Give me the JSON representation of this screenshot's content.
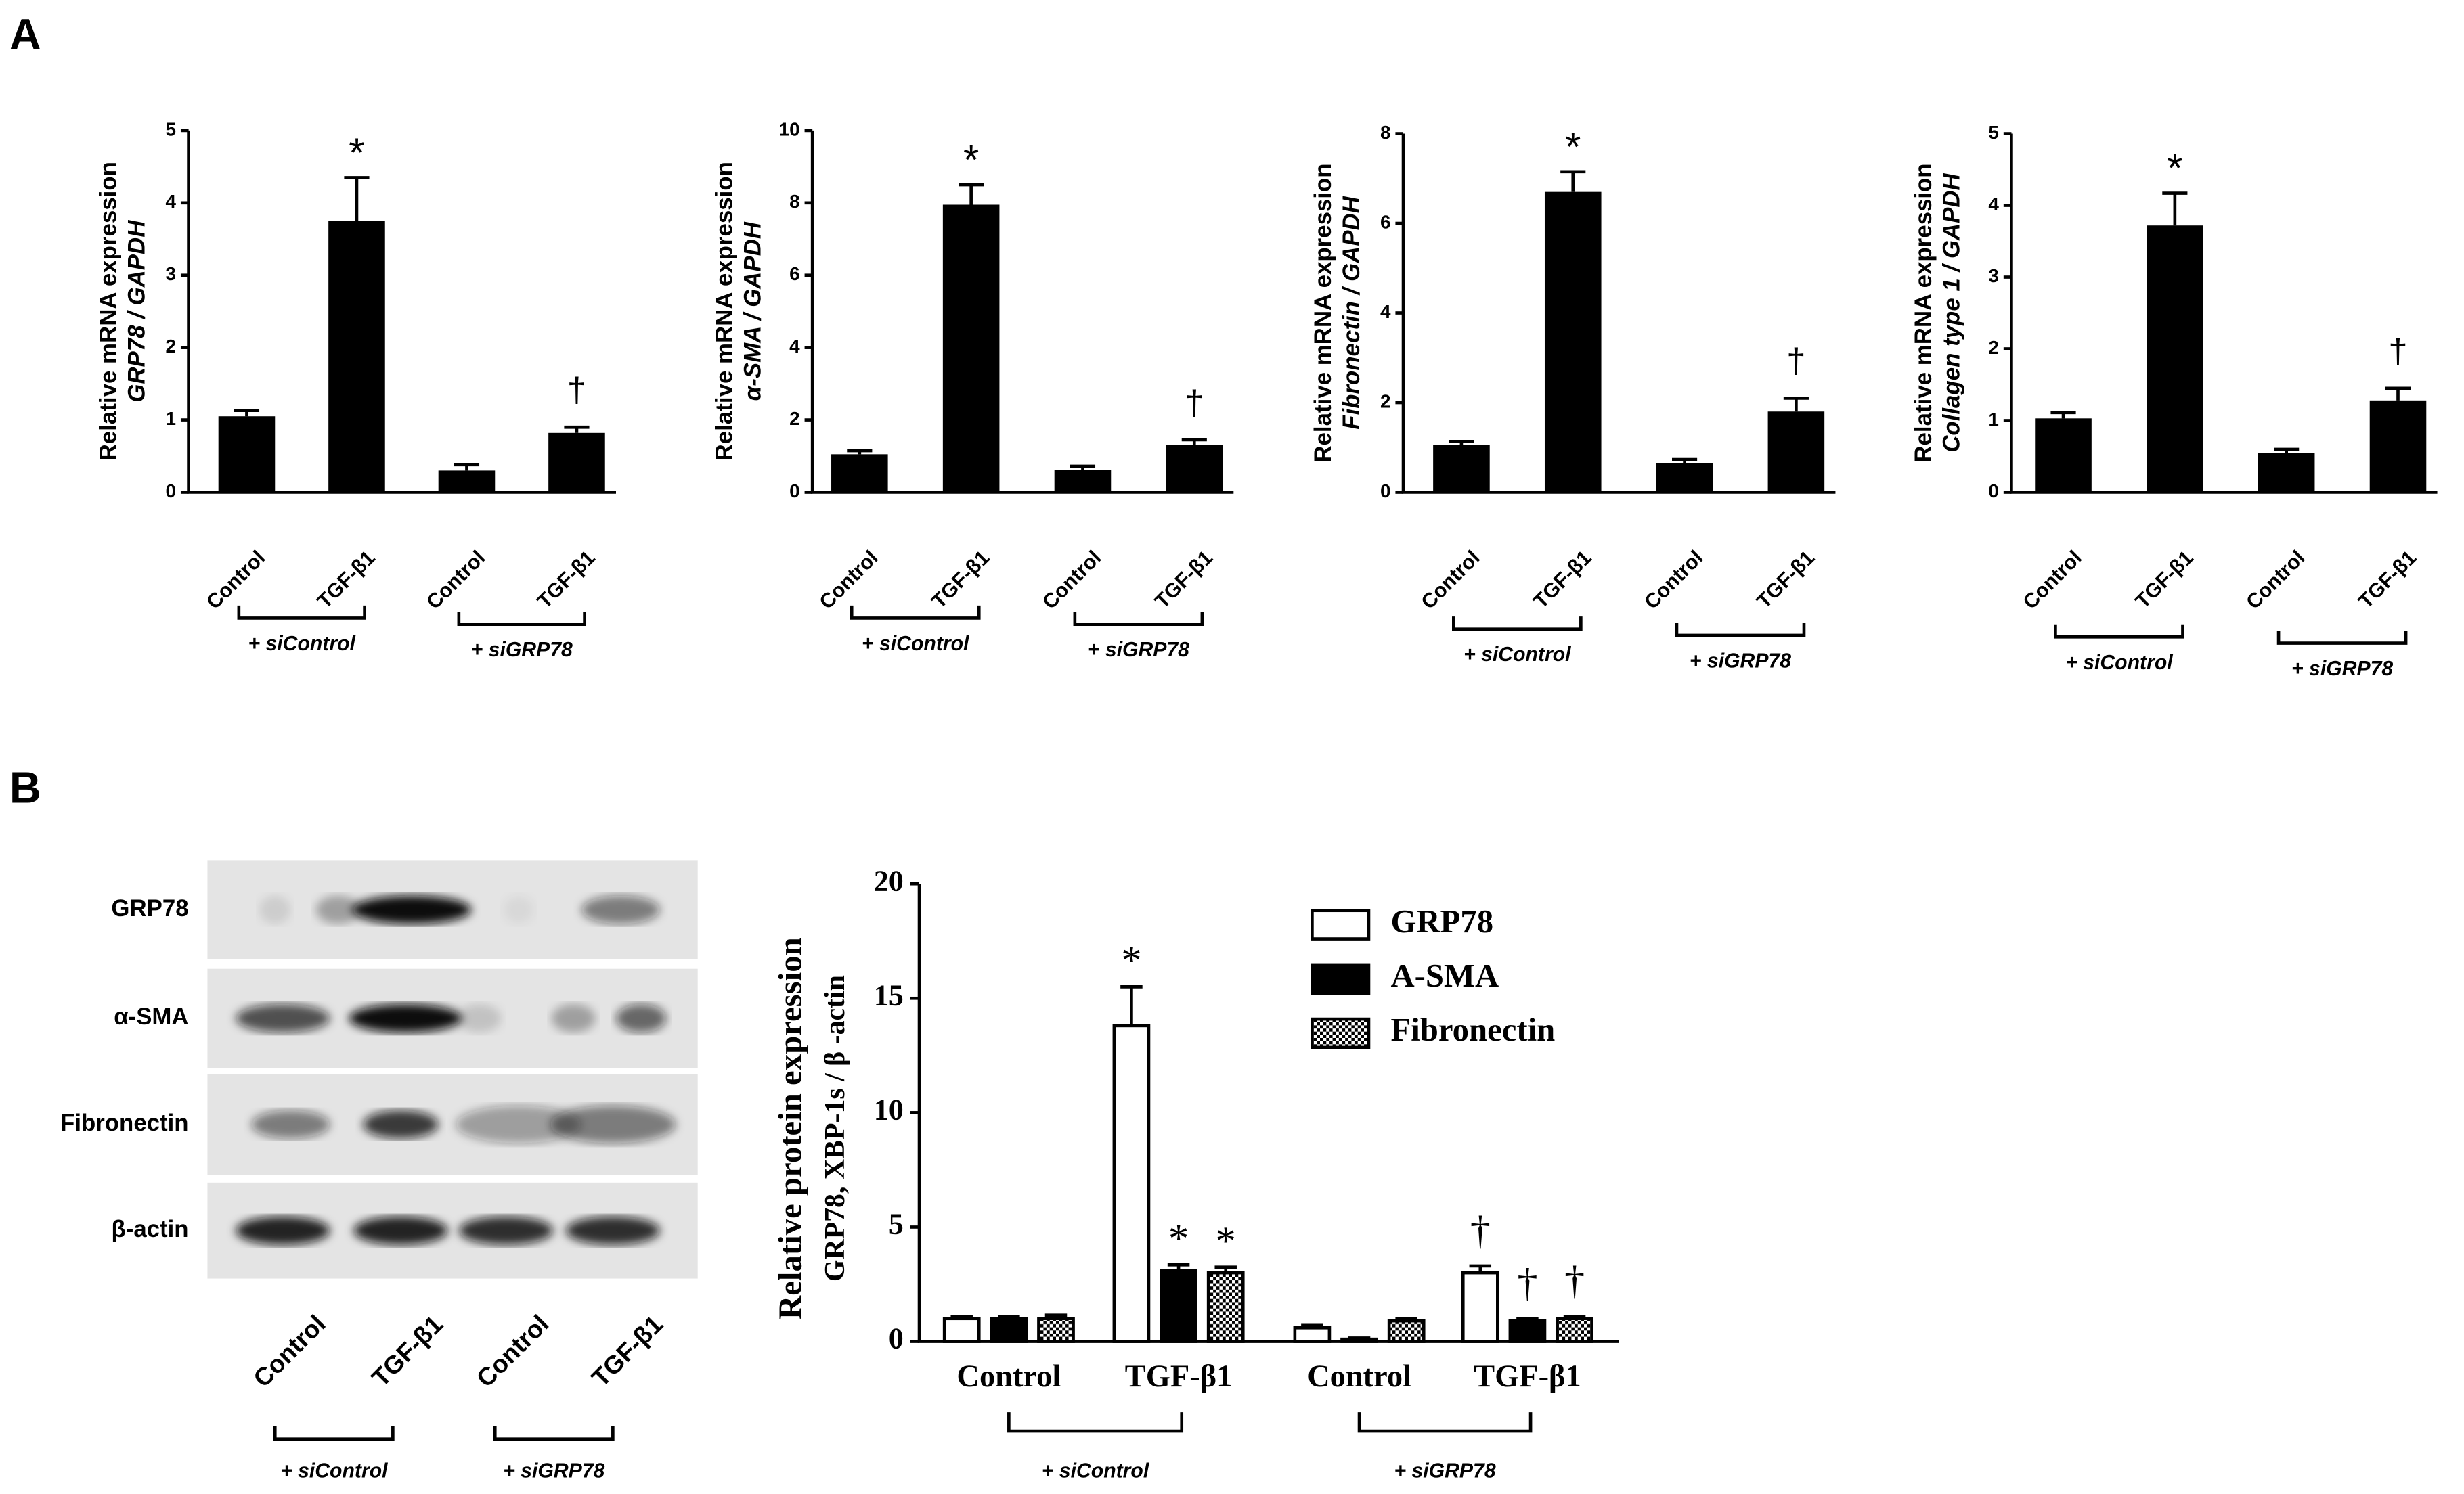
{
  "panel_labels": [
    "A",
    "B"
  ],
  "blot": {
    "rows": [
      "GRP78",
      "α-SMA",
      "Fibronectin",
      "β-actin"
    ],
    "lanes": [
      "Control",
      "TGF-β1",
      "Control",
      "TGF-β1"
    ],
    "groups": [
      "+ siControl",
      "+ siGRP78"
    ]
  },
  "chart_data": [
    {
      "type": "bar",
      "y_label": [
        "Relative mRNA expression",
        "GRP78 / GAPDH"
      ],
      "categories": [
        "Control",
        "TGF-β1",
        "Control",
        "TGF-β1"
      ],
      "groups": [
        "+ siControl",
        "+ siGRP78"
      ],
      "values": [
        1.05,
        3.75,
        0.3,
        0.82
      ],
      "errors": [
        0.08,
        0.6,
        0.08,
        0.08
      ],
      "markers": [
        null,
        "*",
        null,
        "†"
      ],
      "color": "#000000",
      "ylim": [
        0,
        5
      ],
      "yticks": [
        0,
        1,
        2,
        3,
        4,
        5
      ]
    },
    {
      "type": "bar",
      "y_label": [
        "Relative mRNA expression",
        "α-SMA / GAPDH"
      ],
      "categories": [
        "Control",
        "TGF-β1",
        "Control",
        "TGF-β1"
      ],
      "groups": [
        "+ siControl",
        "+ siGRP78"
      ],
      "values": [
        1.05,
        7.95,
        0.62,
        1.3
      ],
      "errors": [
        0.1,
        0.55,
        0.1,
        0.15
      ],
      "markers": [
        null,
        "*",
        null,
        "†"
      ],
      "color": "#000000",
      "ylim": [
        0,
        10
      ],
      "yticks": [
        0,
        2,
        4,
        6,
        8,
        10
      ]
    },
    {
      "type": "bar",
      "y_label": [
        "Relative mRNA expression",
        "Fibronectin / GAPDH"
      ],
      "categories": [
        "Control",
        "TGF-β1",
        "Control",
        "TGF-β1"
      ],
      "groups": [
        "+ siControl",
        "+ siGRP78"
      ],
      "values": [
        1.05,
        6.7,
        0.65,
        1.8
      ],
      "errors": [
        0.08,
        0.45,
        0.08,
        0.3
      ],
      "markers": [
        null,
        "*",
        null,
        "†"
      ],
      "color": "#000000",
      "ylim": [
        0,
        8
      ],
      "yticks": [
        0,
        2,
        4,
        6,
        8
      ]
    },
    {
      "type": "bar",
      "y_label": [
        "Relative mRNA expression",
        "Collagen type 1 / GAPDH"
      ],
      "categories": [
        "Control",
        "TGF-β1",
        "Control",
        "TGF-β1"
      ],
      "groups": [
        "+ siControl",
        "+ siGRP78"
      ],
      "values": [
        1.03,
        3.72,
        0.55,
        1.28
      ],
      "errors": [
        0.08,
        0.45,
        0.05,
        0.17
      ],
      "markers": [
        null,
        "*",
        null,
        "†"
      ],
      "color": "#000000",
      "ylim": [
        0,
        5
      ],
      "yticks": [
        0,
        1,
        2,
        3,
        4,
        5
      ]
    },
    {
      "type": "grouped_bar",
      "y_label": [
        "Relative protein expression",
        "GRP78, XBP-1s / β -actin"
      ],
      "categories": [
        "Control",
        "TGF-β1",
        "Control",
        "TGF-β1"
      ],
      "groups": [
        "+ siControl",
        "+ siGRP78"
      ],
      "series": [
        {
          "name": "GRP78",
          "color": "#ffffff",
          "values": [
            1.0,
            13.8,
            0.6,
            3.0
          ],
          "errors": [
            0.1,
            1.7,
            0.1,
            0.3
          ],
          "markers": [
            null,
            "*",
            null,
            "†"
          ]
        },
        {
          "name": "A-SMA",
          "color": "#000000",
          "values": [
            1.0,
            3.1,
            0.1,
            0.9
          ],
          "errors": [
            0.1,
            0.25,
            0.05,
            0.1
          ],
          "markers": [
            null,
            "*",
            null,
            "†"
          ]
        },
        {
          "name": "Fibronectin",
          "color": "#000000",
          "fill": "checkered",
          "values": [
            1.0,
            3.0,
            0.9,
            1.0
          ],
          "errors": [
            0.15,
            0.25,
            0.1,
            0.1
          ],
          "markers": [
            null,
            "*",
            null,
            "†"
          ]
        }
      ],
      "ylim": [
        0,
        20
      ],
      "yticks": [
        0,
        5,
        10,
        15,
        20
      ],
      "legend": "upper right"
    }
  ]
}
